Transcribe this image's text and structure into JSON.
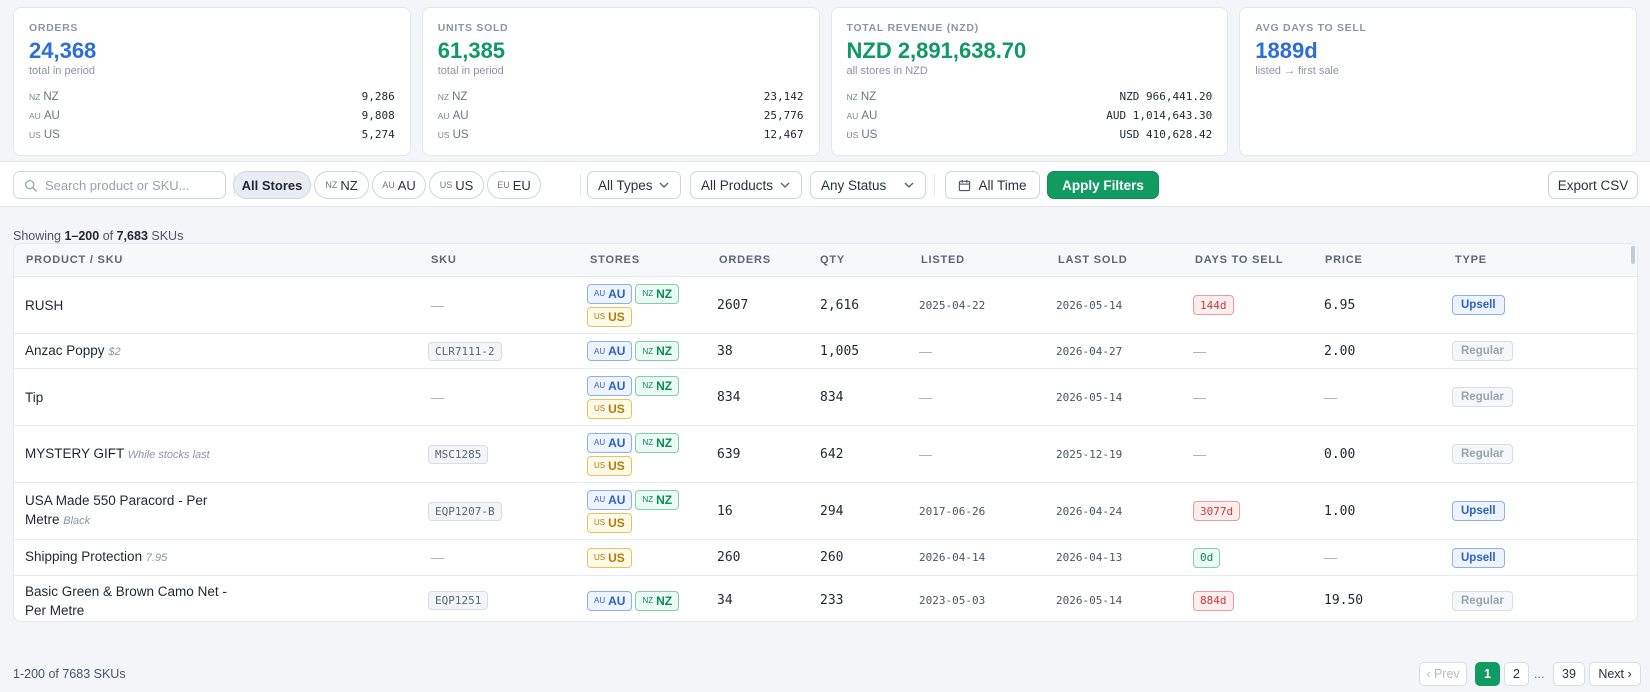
{
  "stats": [
    {
      "label": "ORDERS",
      "value": "24,368",
      "sub": "total in period",
      "color": "#2c6ed5",
      "rows": [
        {
          "flag": "NZ",
          "label": "NZ",
          "value": "9,286"
        },
        {
          "flag": "AU",
          "label": "AU",
          "value": "9,808"
        },
        {
          "flag": "US",
          "label": "US",
          "value": "5,274"
        }
      ]
    },
    {
      "label": "UNITS SOLD",
      "value": "61,385",
      "sub": "total in period",
      "color": "#0e9a62",
      "rows": [
        {
          "flag": "NZ",
          "label": "NZ",
          "value": "23,142"
        },
        {
          "flag": "AU",
          "label": "AU",
          "value": "25,776"
        },
        {
          "flag": "US",
          "label": "US",
          "value": "12,467"
        }
      ]
    },
    {
      "label": "TOTAL REVENUE (NZD)",
      "value": "NZD 2,891,638.70",
      "sub": "all stores in NZD",
      "color": "#0e9a62",
      "rows": [
        {
          "flag": "NZ",
          "label": "NZ",
          "value": "NZD 966,441.20"
        },
        {
          "flag": "AU",
          "label": "AU",
          "value": "AUD 1,014,643.30"
        },
        {
          "flag": "US",
          "label": "US",
          "value": "USD 410,628.42"
        }
      ]
    },
    {
      "label": "AVG DAYS TO SELL",
      "value": "1889d",
      "sub": "listed → first sale",
      "color": "#2c6ed5",
      "rows": []
    }
  ],
  "toolbar": {
    "search_placeholder": "Search product or SKU...",
    "store_filters": [
      {
        "flag": "",
        "label": "All Stores",
        "active": true
      },
      {
        "flag": "NZ",
        "label": "NZ",
        "active": false
      },
      {
        "flag": "AU",
        "label": "AU",
        "active": false
      },
      {
        "flag": "US",
        "label": "US",
        "active": false
      },
      {
        "flag": "EU",
        "label": "EU",
        "active": false
      }
    ],
    "type_select": "All Types",
    "product_select": "All Products",
    "status_select": "Any Status",
    "time_button": "All Time",
    "apply_button": "Apply Filters",
    "export_button": "Export CSV"
  },
  "showing": {
    "prefix": "Showing",
    "range": "1–200",
    "of": "of",
    "total": "7,683",
    "suffix": "SKUs"
  },
  "table": {
    "columns": [
      "PRODUCT / SKU",
      "SKU",
      "STORES",
      "ORDERS",
      "QTY",
      "LISTED",
      "LAST SOLD",
      "DAYS TO SELL",
      "PRICE",
      "TYPE"
    ],
    "rows": [
      {
        "product": "RUSH",
        "note": "",
        "sku": "—",
        "stores": [
          "AU",
          "NZ",
          "US"
        ],
        "orders": "2607",
        "qty": "2,616",
        "listed": "2025-04-22",
        "last_sold": "2026-05-14",
        "days": "144d",
        "days_color": "red",
        "price": "6.95",
        "type": "Upsell"
      },
      {
        "product": "Anzac Poppy",
        "note": "$2",
        "sku": "CLR7111-2",
        "stores": [
          "AU",
          "NZ"
        ],
        "orders": "38",
        "qty": "1,005",
        "listed": "—",
        "last_sold": "2026-04-27",
        "days": "—",
        "days_color": "",
        "price": "2.00",
        "type": "Regular"
      },
      {
        "product": "Tip",
        "note": "",
        "sku": "—",
        "stores": [
          "AU",
          "NZ",
          "US"
        ],
        "orders": "834",
        "qty": "834",
        "listed": "—",
        "last_sold": "2026-05-14",
        "days": "—",
        "days_color": "",
        "price": "—",
        "type": "Regular"
      },
      {
        "product": "MYSTERY GIFT",
        "note": "While stocks last",
        "sku": "MSC1285",
        "stores": [
          "AU",
          "NZ",
          "US"
        ],
        "orders": "639",
        "qty": "642",
        "listed": "—",
        "last_sold": "2025-12-19",
        "days": "—",
        "days_color": "",
        "price": "0.00",
        "type": "Regular"
      },
      {
        "product": "USA Made 550 Paracord - Per Metre",
        "note": "Black",
        "sku": "EQP1207-B",
        "stores": [
          "AU",
          "NZ",
          "US"
        ],
        "orders": "16",
        "qty": "294",
        "listed": "2017-06-26",
        "last_sold": "2026-04-24",
        "days": "3077d",
        "days_color": "red",
        "price": "1.00",
        "type": "Upsell"
      },
      {
        "product": "Shipping Protection",
        "note": "7.95",
        "sku": "—",
        "stores": [
          "US"
        ],
        "orders": "260",
        "qty": "260",
        "listed": "2026-04-14",
        "last_sold": "2026-04-13",
        "days": "0d",
        "days_color": "green",
        "price": "—",
        "type": "Upsell"
      },
      {
        "product": "Basic Green & Brown Camo Net - Per Metre",
        "note": "",
        "sku": "EQP1251",
        "stores": [
          "AU",
          "NZ"
        ],
        "orders": "34",
        "qty": "233",
        "listed": "2023-05-03",
        "last_sold": "2026-05-14",
        "days": "884d",
        "days_color": "red",
        "price": "19.50",
        "type": "Regular"
      }
    ]
  },
  "footer": {
    "summary": "1-200 of 7683 SKUs",
    "prev": "‹ Prev",
    "pages": [
      "1",
      "2"
    ],
    "ellipsis": "...",
    "last_page": "39",
    "next": "Next ›"
  }
}
